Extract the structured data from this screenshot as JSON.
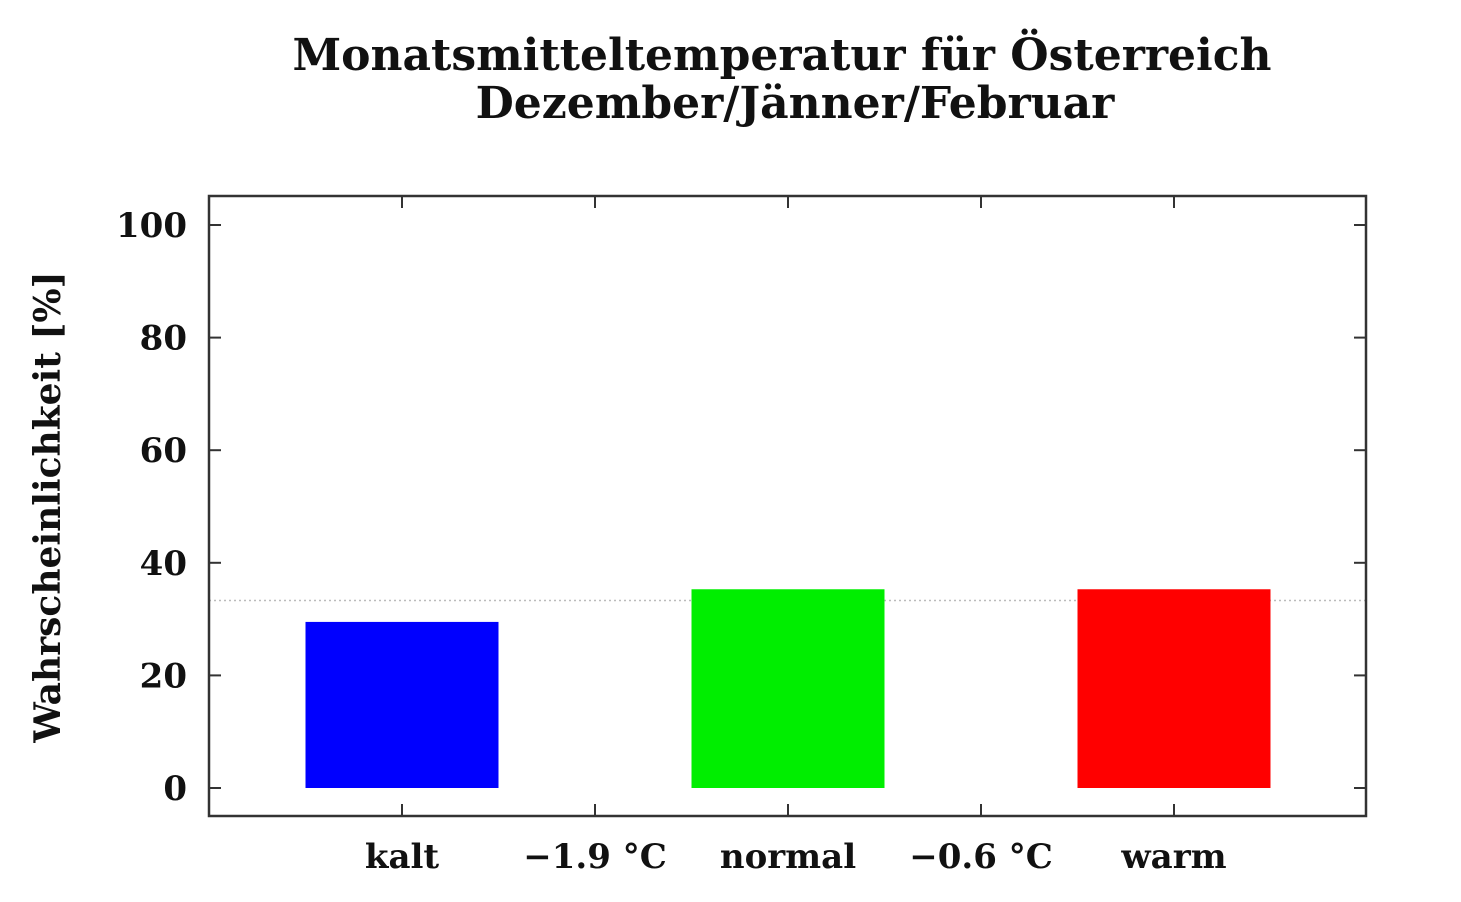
{
  "chart_data": {
    "type": "bar",
    "title": "Monatsmitteltemperatur für Österreich",
    "subtitle": "Dezember/Jänner/Februar",
    "ylabel": "Wahrscheinlichkeit [%]",
    "xlabel": "",
    "ylim": [
      0,
      100
    ],
    "yticks": [
      0,
      20,
      40,
      60,
      80,
      100
    ],
    "categories": [
      "kalt",
      "normal",
      "warm"
    ],
    "values": [
      29.5,
      35.3,
      35.3
    ],
    "colors": [
      "#0000ff",
      "#00ee00",
      "#ff0000"
    ],
    "boundary_labels": [
      "−1.9 °C",
      "−0.6 °C"
    ],
    "reference_line": 33.3,
    "grid": false,
    "legend": "none"
  }
}
